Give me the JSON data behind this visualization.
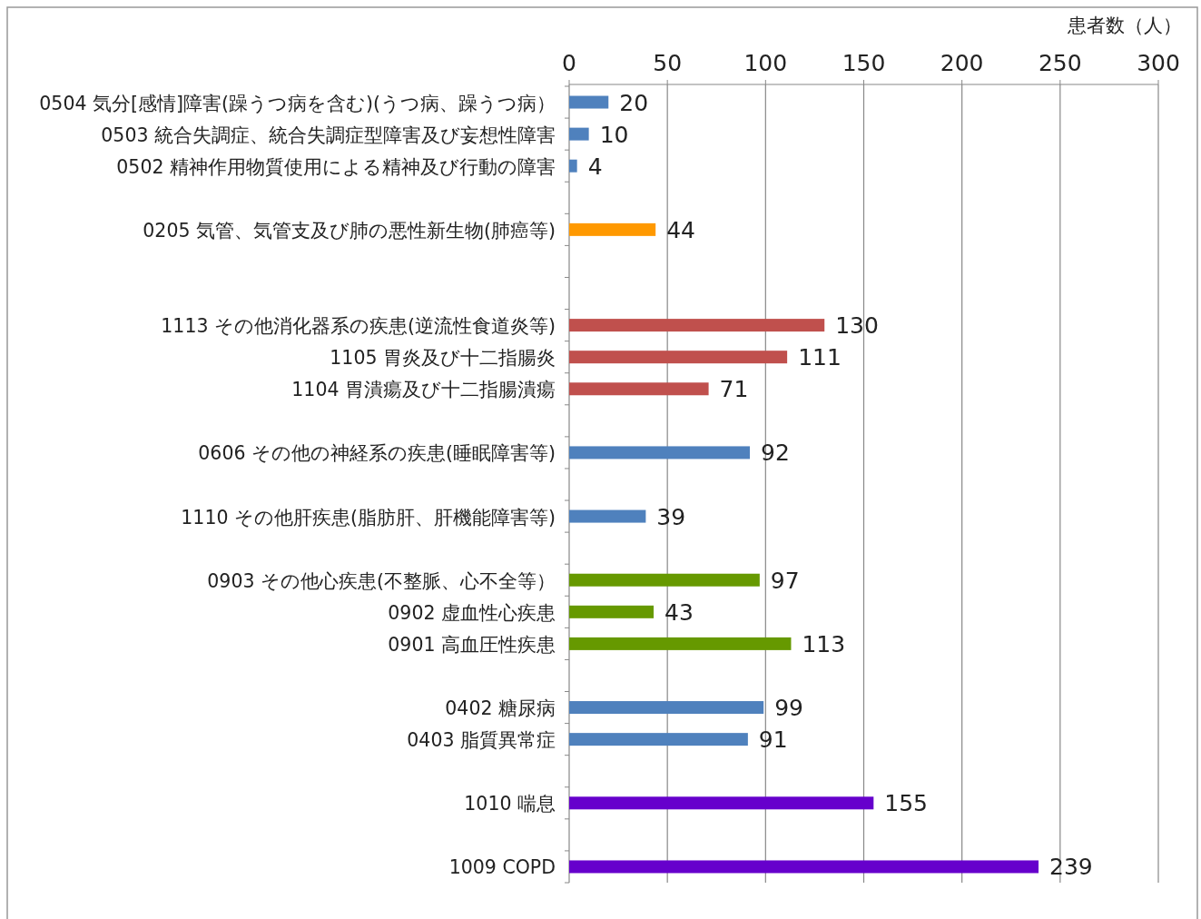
{
  "chart_data": {
    "type": "bar",
    "orientation": "horizontal",
    "xlabel": "患者数（人）",
    "categories": [
      "0504 気分[感情]障害(躁うつ病を含む)(うつ病、躁うつ病）",
      "0503 統合失調症、統合失調症型障害及び妄想性障害",
      "0502 精神作用物質使用による精神及び行動の障害",
      null,
      "0205 気管、気管支及び肺の悪性新生物(肺癌等)",
      null,
      null,
      "1113 その他消化器系の疾患(逆流性食道炎等)",
      "1105 胃炎及び十二指腸炎",
      "1104 胃潰瘍及び十二指腸潰瘍",
      null,
      "0606 その他の神経系の疾患(睡眠障害等)",
      null,
      "1110 その他肝疾患(脂肪肝、肝機能障害等)",
      null,
      "0903 その他心疾患(不整脈、心不全等）",
      "0902 虚血性心疾患",
      "0901 高血圧性疾患",
      null,
      "0402 糖尿病",
      "0403 脂質異常症",
      null,
      "1010 喘息",
      null,
      "1009 COPD"
    ],
    "values": [
      20,
      10,
      4,
      null,
      44,
      null,
      null,
      130,
      111,
      71,
      null,
      92,
      null,
      39,
      null,
      97,
      43,
      113,
      null,
      99,
      91,
      null,
      155,
      null,
      239
    ],
    "colors": [
      "#4f81bd",
      "#4f81bd",
      "#4f81bd",
      null,
      "#ff9900",
      null,
      null,
      "#c0504d",
      "#c0504d",
      "#c0504d",
      null,
      "#4f81bd",
      null,
      "#4f81bd",
      null,
      "#669900",
      "#669900",
      "#669900",
      null,
      "#4f81bd",
      "#4f81bd",
      null,
      "#6600cc",
      null,
      "#6600cc"
    ],
    "xlim": [
      0,
      300
    ],
    "xticks": [
      0,
      50,
      100,
      150,
      200,
      250,
      300
    ],
    "grid": "x",
    "data_labels": true
  }
}
